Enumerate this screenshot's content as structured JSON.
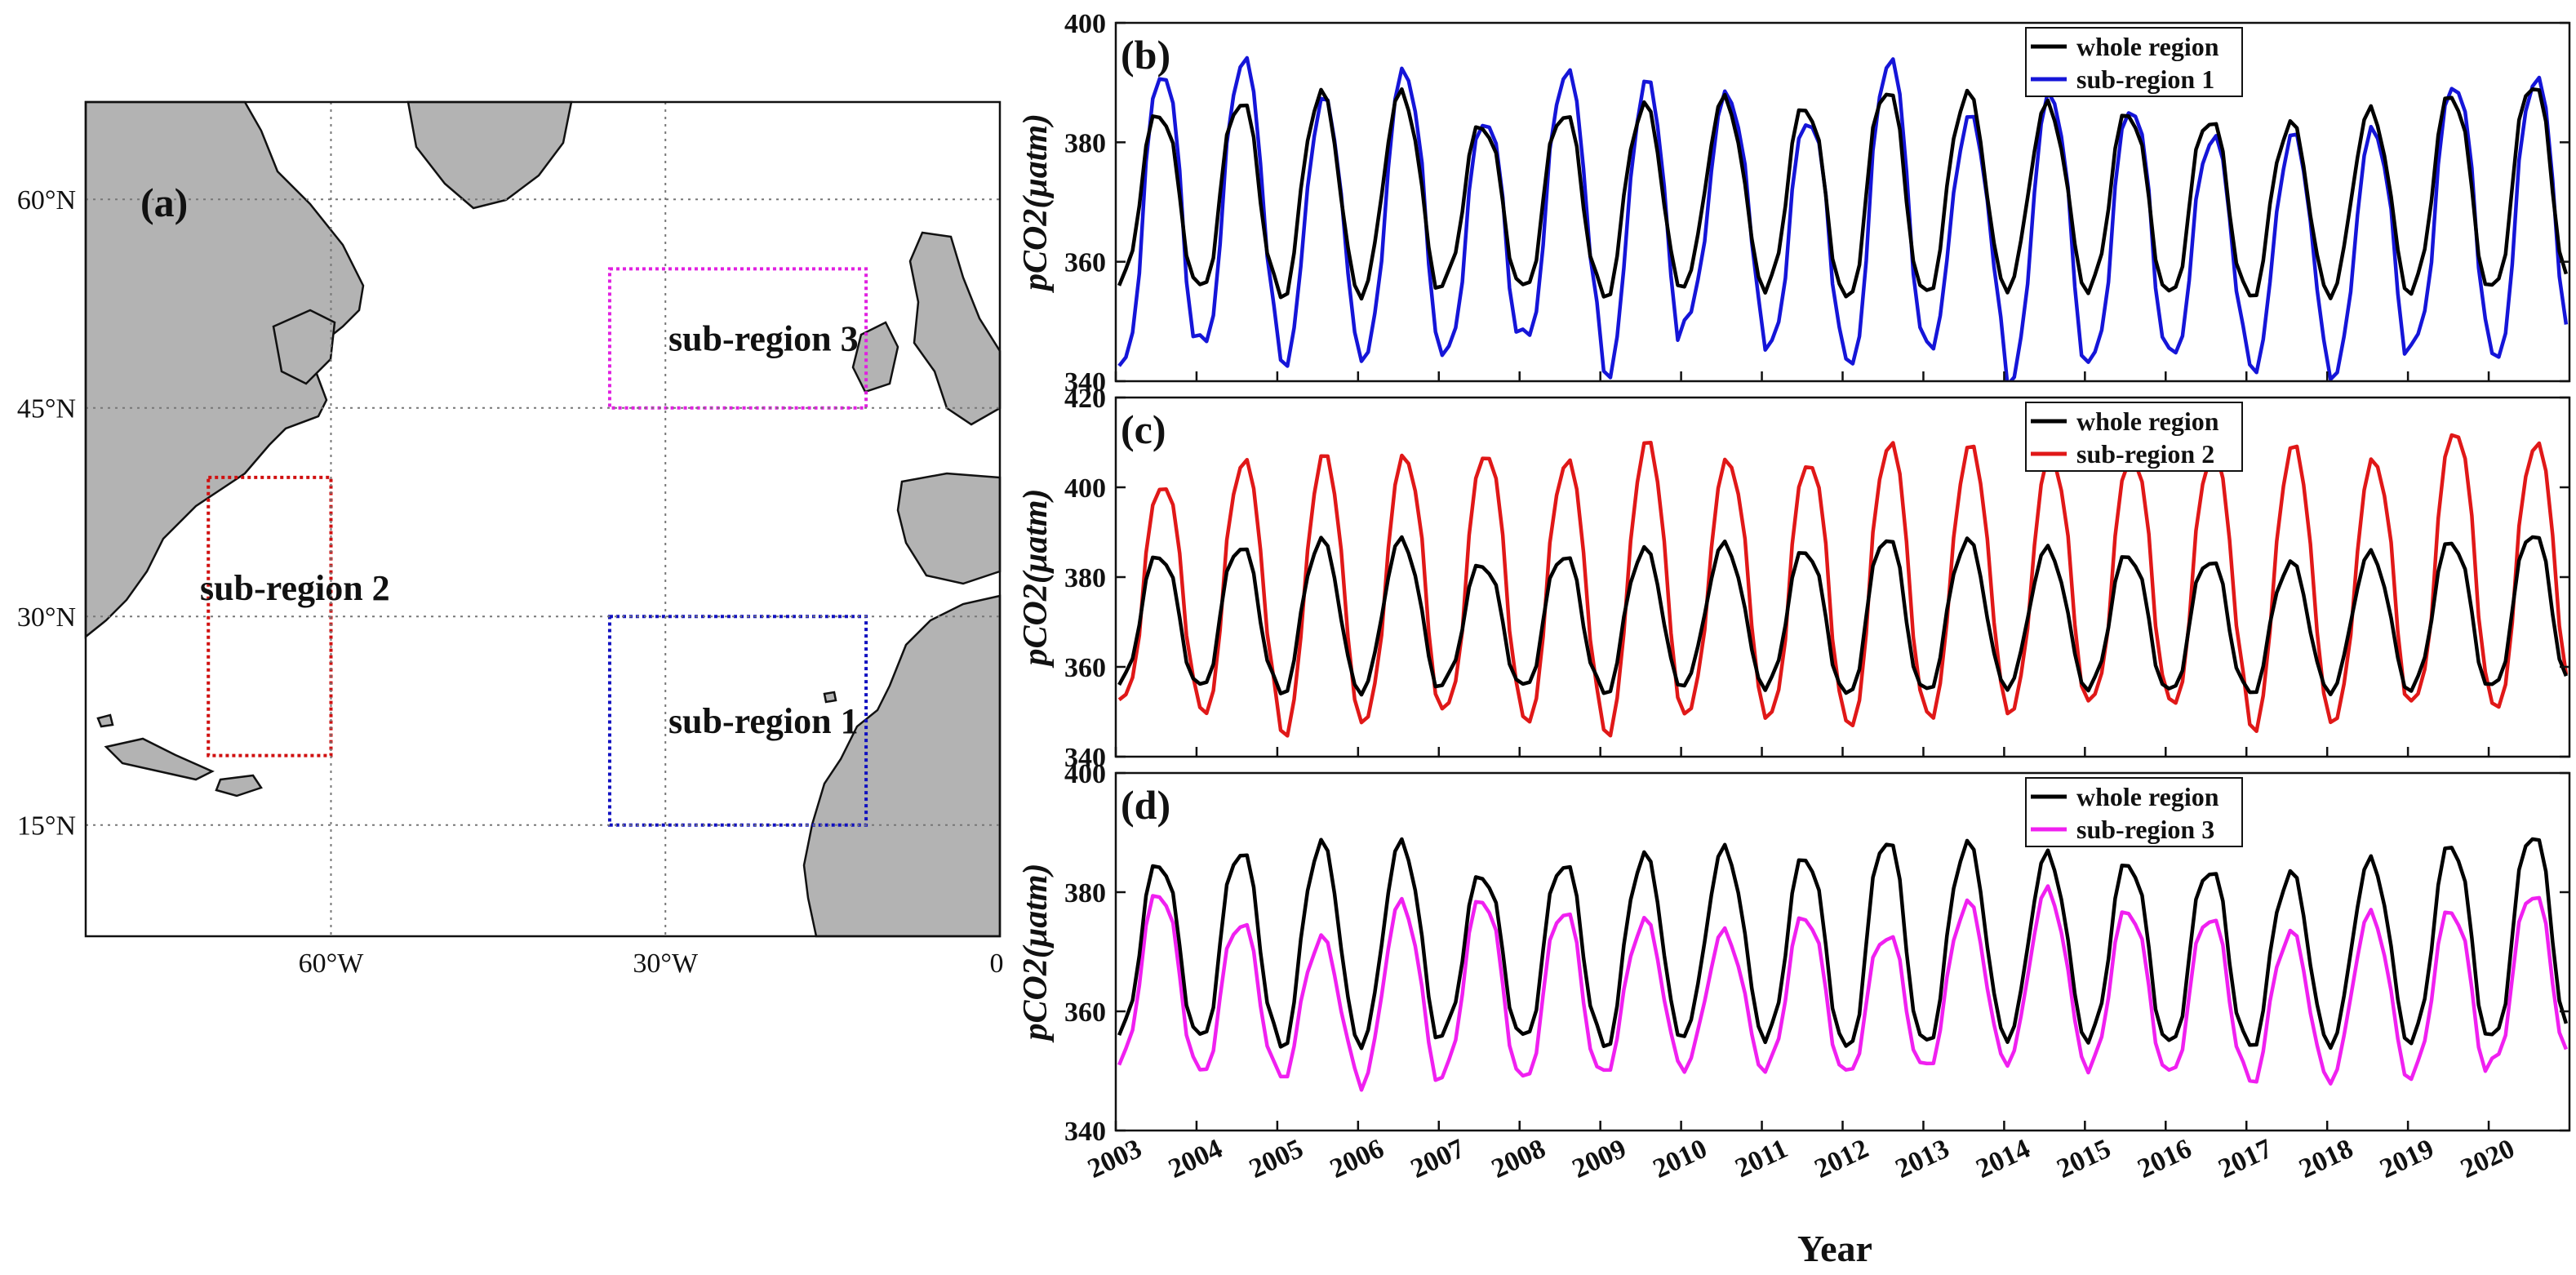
{
  "map": {
    "label": "(a)",
    "lat_ticks": [
      "60°N",
      "45°N",
      "30°N",
      "15°N"
    ],
    "lon_ticks": [
      "60°W",
      "30°W",
      "0"
    ],
    "regions": [
      {
        "name": "sub-region 3",
        "color": "#e020e0",
        "lon": [
          -35,
          -12
        ],
        "lat": [
          45,
          55
        ]
      },
      {
        "name": "sub-region 2",
        "color": "#d01010",
        "lon": [
          -71,
          -60
        ],
        "lat": [
          20,
          40
        ]
      },
      {
        "name": "sub-region 1",
        "color": "#1010c0",
        "lon": [
          -35,
          -12
        ],
        "lat": [
          15,
          30
        ]
      }
    ]
  },
  "chart_data": {
    "type": "line",
    "xlabel": "Year",
    "ylabel": "pCO2(μatm)",
    "x_ticks": [
      "2003",
      "2004",
      "2005",
      "2006",
      "2007",
      "2008",
      "2009",
      "2010",
      "2011",
      "2012",
      "2013",
      "2014",
      "2015",
      "2016",
      "2017",
      "2018",
      "2019",
      "2020"
    ],
    "xlim": [
      2003,
      2021
    ],
    "whole_region": {
      "name": "whole region",
      "color": "#000000",
      "peaks": [
        385,
        387,
        388,
        388,
        383,
        385,
        386,
        387,
        386,
        389,
        388,
        386,
        385,
        384,
        383,
        385,
        388,
        390
      ],
      "troughs": [
        356,
        355,
        354,
        355,
        356,
        355,
        354,
        357,
        355,
        353,
        355,
        356,
        355,
        354,
        354,
        355,
        355,
        355
      ]
    },
    "panels": [
      {
        "label": "(b)",
        "ylim": [
          340,
          400
        ],
        "yticks": [
          "340",
          "360",
          "380",
          "400"
        ],
        "legend": [
          "whole region",
          "sub-region 1"
        ],
        "series_name": "sub-region 1",
        "color": "#1515d8",
        "phase": 0.45,
        "peaks": [
          392,
          394,
          387,
          392,
          384,
          392,
          390,
          388,
          384,
          394,
          384,
          388,
          386,
          381,
          381,
          382,
          390,
          391
        ],
        "troughs": [
          342,
          346,
          343,
          344,
          344,
          347,
          341,
          351,
          345,
          342,
          346,
          340,
          343,
          344,
          342,
          341,
          346,
          343
        ]
      },
      {
        "label": "(c)",
        "ylim": [
          340,
          420
        ],
        "yticks": [
          "340",
          "360",
          "380",
          "400",
          "420"
        ],
        "legend": [
          "whole region",
          "sub-region 2"
        ],
        "series_name": "sub-region 2",
        "color": "#e01818",
        "phase": 0.5,
        "peaks": [
          401,
          406,
          407,
          407,
          408,
          406,
          410,
          406,
          406,
          410,
          409,
          407,
          407,
          408,
          409,
          406,
          413,
          410
        ],
        "troughs": [
          352,
          349,
          345,
          348,
          350,
          347,
          345,
          350,
          348,
          346,
          349,
          350,
          352,
          351,
          346,
          348,
          352,
          350
        ]
      },
      {
        "label": "(d)",
        "ylim": [
          340,
          400
        ],
        "yticks": [
          "340",
          "360",
          "380",
          "400"
        ],
        "legend": [
          "whole region",
          "sub-region 3"
        ],
        "series_name": "sub-region 3",
        "color": "#f020f0",
        "phase": 0.0,
        "peaks": [
          380,
          375,
          372,
          378,
          379,
          377,
          375,
          373,
          376,
          373,
          378,
          380,
          377,
          376,
          373,
          376,
          377,
          380
        ],
        "troughs": [
          351,
          349,
          349,
          348,
          349,
          348,
          350,
          351,
          350,
          349,
          351,
          352,
          350,
          349,
          348,
          349,
          349,
          351
        ]
      }
    ]
  }
}
